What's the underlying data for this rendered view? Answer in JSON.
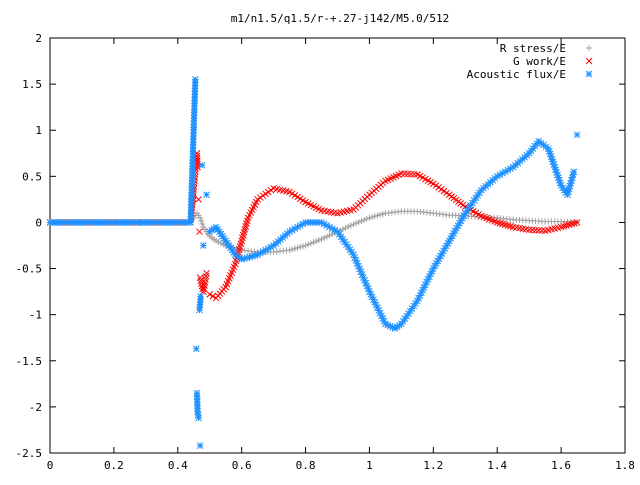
{
  "chart_data": {
    "type": "scatter",
    "title": "m1/n1.5/q1.5/r-+.27-j142/M5.0/512",
    "xlabel": "",
    "ylabel": "",
    "xlim": [
      0,
      1.8
    ],
    "ylim": [
      -2.5,
      2
    ],
    "x_ticks": [
      "0",
      "0.2",
      "0.4",
      "0.6",
      "0.8",
      "1",
      "1.2",
      "1.4",
      "1.6",
      "1.8"
    ],
    "y_ticks": [
      "2",
      "1.5",
      "1",
      "0.5",
      "0",
      "-0.5",
      "-1",
      "-1.5",
      "-2",
      "-2.5"
    ],
    "grid": false,
    "legend_position": "top-right",
    "series": [
      {
        "name": "R stress/E",
        "marker": "plus",
        "color": "#a0a0a0",
        "points": [
          [
            0.0,
            0.0
          ],
          [
            0.44,
            0.0
          ],
          [
            0.46,
            0.1
          ],
          [
            0.47,
            0.05
          ],
          [
            0.48,
            -0.05
          ],
          [
            0.5,
            -0.15
          ],
          [
            0.52,
            -0.2
          ],
          [
            0.55,
            -0.25
          ],
          [
            0.6,
            -0.3
          ],
          [
            0.65,
            -0.32
          ],
          [
            0.7,
            -0.32
          ],
          [
            0.75,
            -0.3
          ],
          [
            0.8,
            -0.25
          ],
          [
            0.85,
            -0.18
          ],
          [
            0.9,
            -0.1
          ],
          [
            0.95,
            -0.02
          ],
          [
            1.0,
            0.05
          ],
          [
            1.05,
            0.1
          ],
          [
            1.1,
            0.12
          ],
          [
            1.15,
            0.12
          ],
          [
            1.2,
            0.1
          ],
          [
            1.25,
            0.08
          ],
          [
            1.3,
            0.07
          ],
          [
            1.35,
            0.06
          ],
          [
            1.4,
            0.05
          ],
          [
            1.45,
            0.03
          ],
          [
            1.5,
            0.02
          ],
          [
            1.55,
            0.01
          ],
          [
            1.6,
            0.01
          ],
          [
            1.65,
            0.0
          ]
        ]
      },
      {
        "name": "G work/E",
        "marker": "x",
        "color": "#ff0000",
        "points": [
          [
            0.0,
            0.0
          ],
          [
            0.44,
            0.0
          ],
          [
            0.46,
            0.75
          ],
          [
            0.462,
            0.6
          ],
          [
            0.465,
            0.25
          ],
          [
            0.468,
            -0.1
          ],
          [
            0.47,
            -0.6
          ],
          [
            0.48,
            -0.75
          ],
          [
            0.49,
            -0.55
          ],
          [
            0.5,
            -0.78
          ],
          [
            0.52,
            -0.82
          ],
          [
            0.55,
            -0.7
          ],
          [
            0.58,
            -0.45
          ],
          [
            0.6,
            -0.2
          ],
          [
            0.62,
            0.05
          ],
          [
            0.65,
            0.25
          ],
          [
            0.7,
            0.37
          ],
          [
            0.75,
            0.33
          ],
          [
            0.8,
            0.22
          ],
          [
            0.85,
            0.13
          ],
          [
            0.9,
            0.1
          ],
          [
            0.95,
            0.14
          ],
          [
            1.0,
            0.3
          ],
          [
            1.05,
            0.45
          ],
          [
            1.1,
            0.53
          ],
          [
            1.15,
            0.52
          ],
          [
            1.2,
            0.42
          ],
          [
            1.25,
            0.3
          ],
          [
            1.3,
            0.17
          ],
          [
            1.35,
            0.07
          ],
          [
            1.4,
            0.0
          ],
          [
            1.45,
            -0.05
          ],
          [
            1.5,
            -0.08
          ],
          [
            1.55,
            -0.09
          ],
          [
            1.6,
            -0.05
          ],
          [
            1.65,
            0.0
          ]
        ]
      },
      {
        "name": "Acoustic flux/E",
        "marker": "asterisk",
        "color": "#1e90ff",
        "points": [
          [
            0.0,
            0.0
          ],
          [
            0.44,
            0.0
          ],
          [
            0.455,
            1.55
          ],
          [
            0.458,
            -1.37
          ],
          [
            0.46,
            -1.85
          ],
          [
            0.462,
            -2.05
          ],
          [
            0.465,
            -2.12
          ],
          [
            0.47,
            -2.42
          ],
          [
            0.468,
            -0.95
          ],
          [
            0.472,
            -0.8
          ],
          [
            0.476,
            0.62
          ],
          [
            0.48,
            -0.25
          ],
          [
            0.49,
            0.3
          ],
          [
            0.5,
            -0.1
          ],
          [
            0.52,
            -0.05
          ],
          [
            0.55,
            -0.2
          ],
          [
            0.58,
            -0.35
          ],
          [
            0.6,
            -0.4
          ],
          [
            0.65,
            -0.35
          ],
          [
            0.7,
            -0.25
          ],
          [
            0.75,
            -0.1
          ],
          [
            0.8,
            0.0
          ],
          [
            0.85,
            0.0
          ],
          [
            0.9,
            -0.1
          ],
          [
            0.95,
            -0.35
          ],
          [
            1.0,
            -0.75
          ],
          [
            1.05,
            -1.1
          ],
          [
            1.08,
            -1.15
          ],
          [
            1.1,
            -1.1
          ],
          [
            1.15,
            -0.85
          ],
          [
            1.2,
            -0.5
          ],
          [
            1.25,
            -0.2
          ],
          [
            1.3,
            0.1
          ],
          [
            1.35,
            0.35
          ],
          [
            1.4,
            0.5
          ],
          [
            1.45,
            0.6
          ],
          [
            1.5,
            0.75
          ],
          [
            1.53,
            0.88
          ],
          [
            1.56,
            0.8
          ],
          [
            1.58,
            0.6
          ],
          [
            1.6,
            0.4
          ],
          [
            1.62,
            0.3
          ],
          [
            1.64,
            0.55
          ],
          [
            1.65,
            0.95
          ]
        ]
      }
    ]
  }
}
